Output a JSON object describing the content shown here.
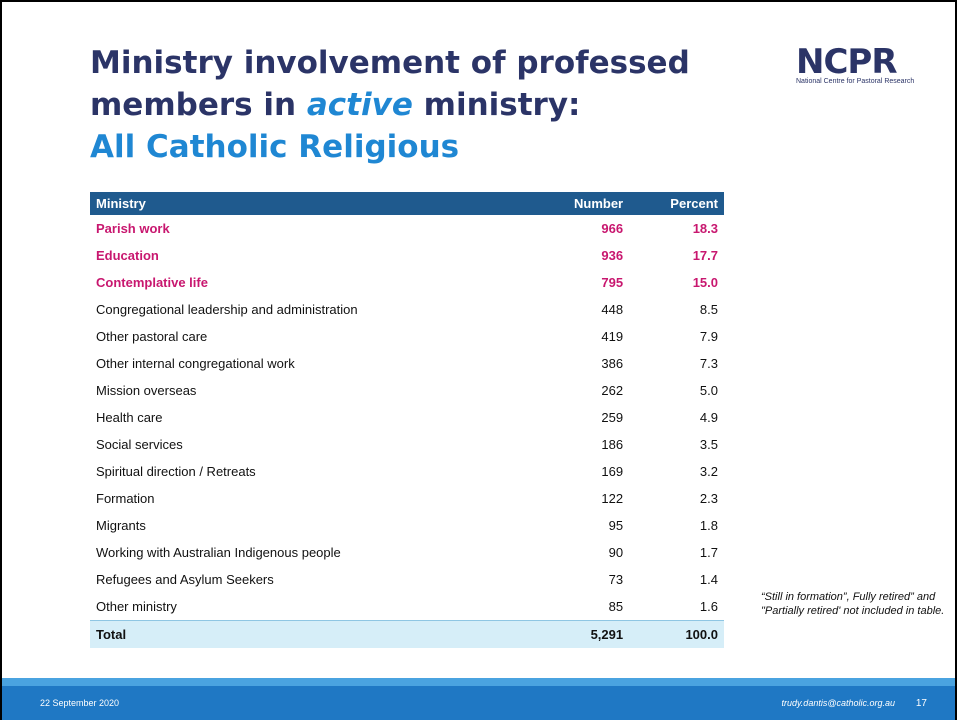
{
  "title": {
    "line1": "Ministry involvement of professed",
    "line2_before": "members in",
    "line2_em": "active",
    "line2_after": "ministry:",
    "subtitle": "All Catholic Religious"
  },
  "logo": {
    "name": "NCPR",
    "caption": "National Centre for Pastoral Research"
  },
  "table": {
    "header": [
      "Ministry",
      "Number",
      "Percent"
    ],
    "rows": [
      [
        "Parish work",
        "966",
        "18.3"
      ],
      [
        "Education",
        "936",
        "17.7"
      ],
      [
        "Contemplative life",
        "795",
        "15.0"
      ],
      [
        "Congregational leadership and administration",
        "448",
        "8.5"
      ],
      [
        "Other pastoral care",
        "419",
        "7.9"
      ],
      [
        "Other internal congregational work",
        "386",
        "7.3"
      ],
      [
        "Mission overseas",
        "262",
        "5.0"
      ],
      [
        "Health care",
        "259",
        "4.9"
      ],
      [
        "Social services",
        "186",
        "3.5"
      ],
      [
        "Spiritual direction / Retreats",
        "169",
        "3.2"
      ],
      [
        "Formation",
        "122",
        "2.3"
      ],
      [
        "Migrants",
        "95",
        "1.8"
      ],
      [
        "Working with Australian Indigenous people",
        "90",
        "1.7"
      ],
      [
        "Refugees and Asylum Seekers",
        "73",
        "1.4"
      ],
      [
        "Other ministry",
        "85",
        "1.6"
      ]
    ],
    "total": [
      "Total",
      "5,291",
      "100.0"
    ]
  },
  "note": "“Still in formation”, Fully retired” and \"Partially retired' not included in table.",
  "footer": {
    "date": "22 September 2020",
    "email": "trudy.dantis@catholic.org.au",
    "page": "17"
  }
}
